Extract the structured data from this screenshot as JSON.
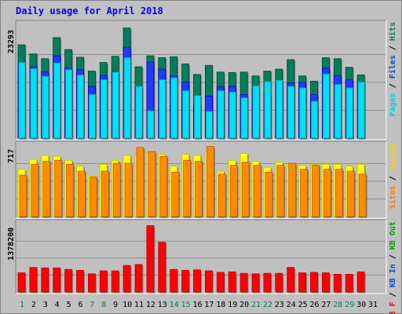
{
  "page": {
    "title": "Daily usage for April 2018"
  },
  "legends": {
    "panel1": [
      {
        "text": "Pages",
        "color": "#00d0e8"
      },
      {
        "text": " / ",
        "color": "#000000"
      },
      {
        "text": "Files",
        "color": "#0050d0"
      },
      {
        "text": " / ",
        "color": "#000000"
      },
      {
        "text": "Hits",
        "color": "#00805c"
      }
    ],
    "panel2": [
      {
        "text": "Sites",
        "color": "#ff8000"
      },
      {
        "text": " / ",
        "color": "#000000"
      },
      {
        "text": "Visits",
        "color": "#ffd000"
      }
    ],
    "panel3": [
      {
        "text": "KB F",
        "color": "#ff0000"
      },
      {
        "text": " / ",
        "color": "#000000"
      },
      {
        "text": "KB In",
        "color": "#0050d0"
      },
      {
        "text": " / ",
        "color": "#000000"
      },
      {
        "text": "KB Out",
        "color": "#00a000"
      }
    ]
  },
  "chart_data": [
    {
      "type": "bar",
      "panel": "hits-files-pages",
      "ytick": "23293",
      "ylim": [
        0,
        23293
      ],
      "x": [
        "1",
        "2",
        "3",
        "4",
        "5",
        "6",
        "7",
        "8",
        "9",
        "10",
        "11",
        "12",
        "13",
        "14",
        "15",
        "16",
        "17",
        "18",
        "19",
        "20",
        "21",
        "22",
        "23",
        "24",
        "25",
        "26",
        "27",
        "28",
        "29",
        "30",
        "31"
      ],
      "weekend_days": [
        "1",
        "7",
        "8",
        "14",
        "15",
        "21",
        "22",
        "28",
        "29"
      ],
      "colors": {
        "Hits": "#007f5f",
        "Files": "#1e3cff",
        "Pages": "#00e0f8"
      },
      "series": [
        {
          "name": "Hits",
          "values": [
            19500,
            17600,
            16600,
            21000,
            18500,
            16900,
            14000,
            15800,
            17100,
            23000,
            14900,
            17200,
            16800,
            17000,
            15500,
            13300,
            15200,
            13800,
            13700,
            13800,
            13000,
            14000,
            14400,
            16400,
            13000,
            11900,
            16800,
            16600,
            14800,
            13200,
            0
          ]
        },
        {
          "name": "Files",
          "values": [
            15700,
            14900,
            13800,
            17200,
            14600,
            14300,
            10800,
            13100,
            13900,
            19000,
            10600,
            15900,
            14400,
            13000,
            11700,
            7100,
            8800,
            10700,
            10800,
            9100,
            10400,
            9300,
            11300,
            11500,
            11600,
            9100,
            14600,
            13100,
            12200,
            11400,
            0
          ]
        },
        {
          "name": "Pages",
          "values": [
            15800,
            14500,
            12900,
            15700,
            14300,
            13200,
            9100,
            12200,
            13800,
            16800,
            10800,
            5700,
            12200,
            12600,
            9900,
            8900,
            5600,
            9900,
            9600,
            8400,
            10900,
            11800,
            12100,
            10800,
            10500,
            7700,
            13400,
            11200,
            10500,
            11700,
            0
          ]
        }
      ]
    },
    {
      "type": "bar",
      "panel": "visits-sites",
      "ytick": "717",
      "ylim": [
        0,
        717
      ],
      "x": [
        "1",
        "2",
        "3",
        "4",
        "5",
        "6",
        "7",
        "8",
        "9",
        "10",
        "11",
        "12",
        "13",
        "14",
        "15",
        "16",
        "17",
        "18",
        "19",
        "20",
        "21",
        "22",
        "23",
        "24",
        "25",
        "26",
        "27",
        "28",
        "29",
        "30",
        "31"
      ],
      "colors": {
        "Visits": "#ffff00",
        "Sites": "#ff8c00"
      },
      "series": [
        {
          "name": "Visits",
          "values": [
            480,
            580,
            620,
            610,
            570,
            510,
            410,
            530,
            570,
            620,
            630,
            650,
            630,
            510,
            630,
            620,
            660,
            460,
            570,
            640,
            560,
            500,
            550,
            530,
            520,
            530,
            530,
            530,
            510,
            530,
            0
          ]
        },
        {
          "name": "Sites",
          "values": [
            420,
            530,
            560,
            570,
            530,
            460,
            400,
            460,
            540,
            540,
            700,
            660,
            610,
            450,
            570,
            560,
            710,
            430,
            520,
            550,
            520,
            450,
            520,
            540,
            480,
            520,
            480,
            480,
            460,
            430,
            0
          ]
        }
      ]
    },
    {
      "type": "bar",
      "panel": "kb",
      "ytick": "1378200",
      "ylim": [
        0,
        1378200
      ],
      "x": [
        "1",
        "2",
        "3",
        "4",
        "5",
        "6",
        "7",
        "8",
        "9",
        "10",
        "11",
        "12",
        "13",
        "14",
        "15",
        "16",
        "17",
        "18",
        "19",
        "20",
        "21",
        "22",
        "23",
        "24",
        "25",
        "26",
        "27",
        "28",
        "29",
        "30",
        "31"
      ],
      "colors": {
        "KB F": "#ff0000"
      },
      "series": [
        {
          "name": "KB F",
          "values": [
            390000,
            500000,
            490000,
            490000,
            460000,
            440000,
            370000,
            430000,
            430000,
            540000,
            560000,
            1350000,
            1010000,
            460000,
            440000,
            450000,
            430000,
            400000,
            410000,
            380000,
            370000,
            380000,
            380000,
            500000,
            390000,
            400000,
            390000,
            360000,
            360000,
            410000,
            0
          ]
        }
      ]
    }
  ]
}
